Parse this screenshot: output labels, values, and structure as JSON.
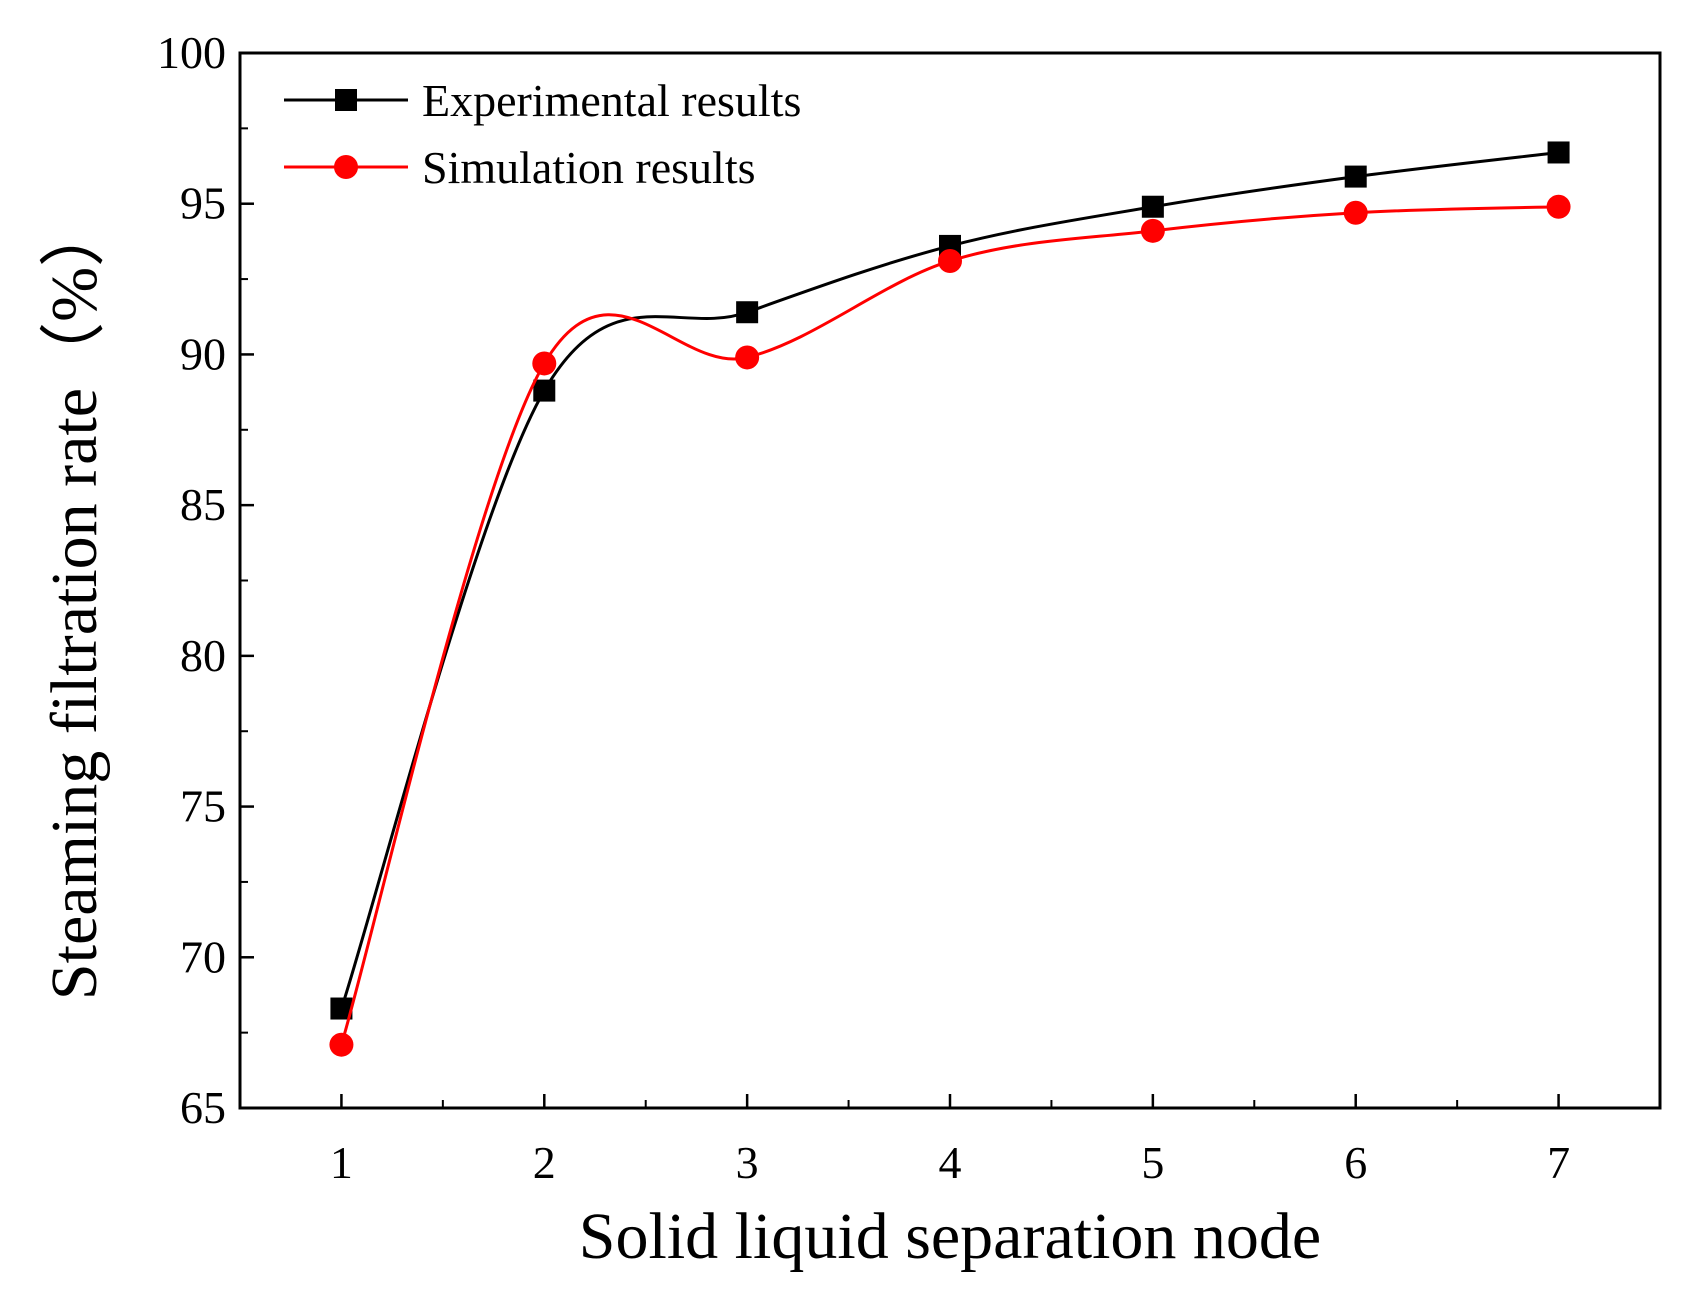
{
  "chart_data": {
    "type": "line",
    "xlabel": "Solid liquid separation node",
    "ylabel": "Steaming filtration rate（%）",
    "xlim": [
      0.5,
      7.5
    ],
    "ylim": [
      65,
      100
    ],
    "x_ticks": [
      1,
      2,
      3,
      4,
      5,
      6,
      7
    ],
    "y_ticks": [
      65,
      70,
      75,
      80,
      85,
      90,
      95,
      100
    ],
    "grid": false,
    "legend_position": "top-left",
    "series": [
      {
        "name": "Experimental results",
        "color": "#000000",
        "marker": "square",
        "x": [
          1,
          2,
          3,
          4,
          5,
          6,
          7
        ],
        "y": [
          68.3,
          88.8,
          91.4,
          93.6,
          94.9,
          95.9,
          96.7
        ]
      },
      {
        "name": "Simulation results",
        "color": "#ff0000",
        "marker": "circle",
        "x": [
          1,
          2,
          3,
          4,
          5,
          6,
          7
        ],
        "y": [
          67.1,
          89.7,
          89.9,
          93.1,
          94.1,
          94.7,
          94.9
        ]
      }
    ]
  }
}
